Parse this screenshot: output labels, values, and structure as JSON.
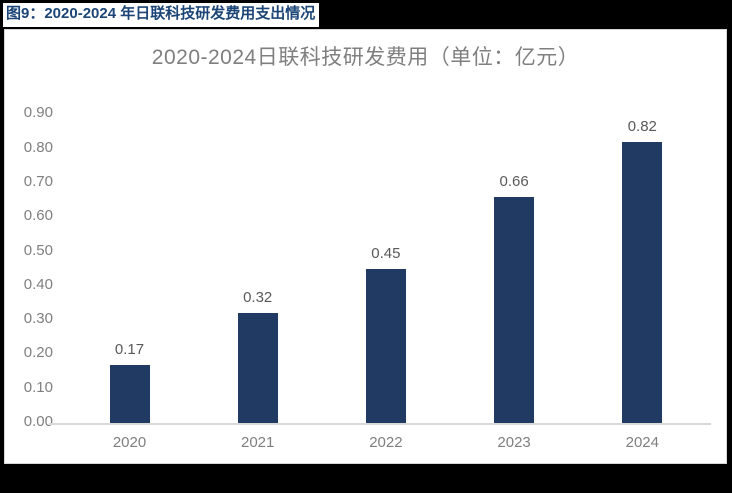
{
  "header": {
    "label": "图9：2020-2024 年日联科技研发费用支出情况",
    "color": "#1C4577",
    "background": "#ffffff"
  },
  "page": {
    "background": "#000000",
    "card_background": "#ffffff",
    "card_border_color": "#d6d6d6"
  },
  "chart_data": {
    "type": "bar",
    "title": "2020-2024日联科技研发费用（单位：亿元）",
    "categories": [
      "2020",
      "2021",
      "2022",
      "2023",
      "2024"
    ],
    "values": [
      0.17,
      0.32,
      0.45,
      0.66,
      0.82
    ],
    "value_labels": [
      "0.17",
      "0.32",
      "0.45",
      "0.66",
      "0.82"
    ],
    "y_ticks": [
      "0.00",
      "0.10",
      "0.20",
      "0.30",
      "0.40",
      "0.50",
      "0.60",
      "0.70",
      "0.80",
      "0.90"
    ],
    "ylim": [
      0,
      0.9
    ],
    "xlabel": "",
    "ylabel": "",
    "grid": false,
    "legend": "none",
    "bar_color": "#203A64",
    "title_color": "#7F7F7F",
    "axis_label_color": "#7F7F7F",
    "data_label_color": "#595959",
    "axis_line_color": "#D9D9D9"
  }
}
